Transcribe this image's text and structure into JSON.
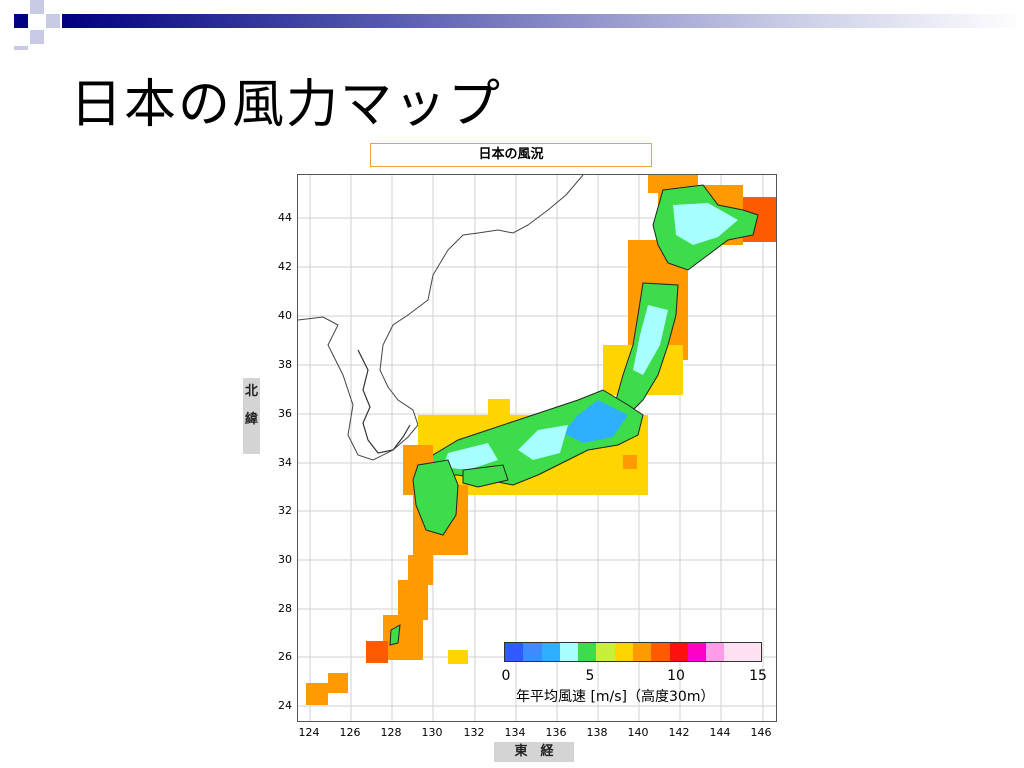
{
  "slide": {
    "title": "日本の風力マップ"
  },
  "map": {
    "title": "日本の風況",
    "lat_label": "北\n緯",
    "lat_label_chars": [
      "北",
      "緯"
    ],
    "lon_label": "東　経",
    "lat_ticks": [
      "44",
      "42",
      "40",
      "38",
      "36",
      "34",
      "32",
      "30",
      "28",
      "26",
      "24"
    ],
    "lon_ticks": [
      "124",
      "126",
      "128",
      "130",
      "132",
      "134",
      "136",
      "138",
      "140",
      "142",
      "144",
      "146"
    ],
    "legend": {
      "caption": "年平均風速 [m/s]（高度30m）",
      "ticks": [
        "0",
        "5",
        "10",
        "15"
      ],
      "colors": [
        "#2f5bff",
        "#3d8cff",
        "#2fb0ff",
        "#a8ffff",
        "#3ddc4a",
        "#c8f03a",
        "#ffd500",
        "#ff9a00",
        "#ff5a00",
        "#ff1010",
        "#ff00c8",
        "#ff9be8",
        "#ffe0f2",
        "#ffe0f2"
      ]
    },
    "colors": {
      "title_border": "#e8a33c",
      "land_outline": "#333333",
      "grid": "#d0d0d0"
    }
  },
  "decoration": {
    "bar_colors": [
      "#000080",
      "#6b6fbf",
      "#c9cbe6"
    ]
  }
}
